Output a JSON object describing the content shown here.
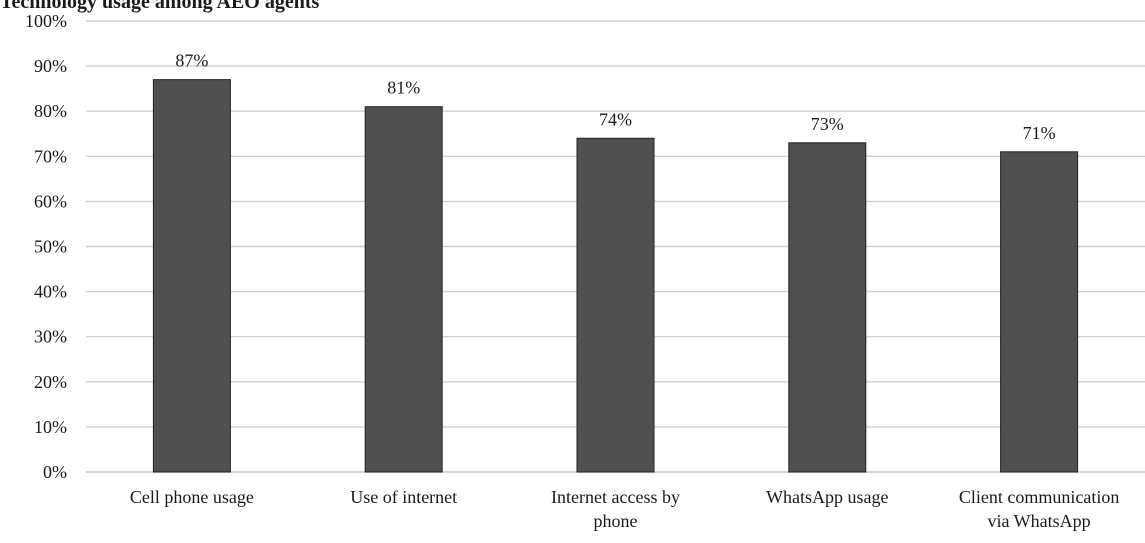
{
  "chart_data": {
    "type": "bar",
    "title": "Technology usage among AEO agents",
    "categories": [
      [
        "Cell phone usage"
      ],
      [
        "Use of internet"
      ],
      [
        "Internet access by",
        "phone"
      ],
      [
        "WhatsApp usage"
      ],
      [
        "Client communication",
        "via WhatsApp"
      ]
    ],
    "values": [
      87,
      81,
      74,
      73,
      71
    ],
    "data_labels": [
      "87%",
      "81%",
      "74%",
      "73%",
      "71%"
    ],
    "ylim": [
      0,
      100
    ],
    "y_ticks": [
      0,
      10,
      20,
      30,
      40,
      50,
      60,
      70,
      80,
      90,
      100
    ],
    "y_tick_labels": [
      "0%",
      "10%",
      "20%",
      "30%",
      "40%",
      "50%",
      "60%",
      "70%",
      "80%",
      "90%",
      "100%"
    ],
    "xlabel": "",
    "ylabel": "",
    "grid": true,
    "legend": "none",
    "bar_color": "#505050"
  }
}
